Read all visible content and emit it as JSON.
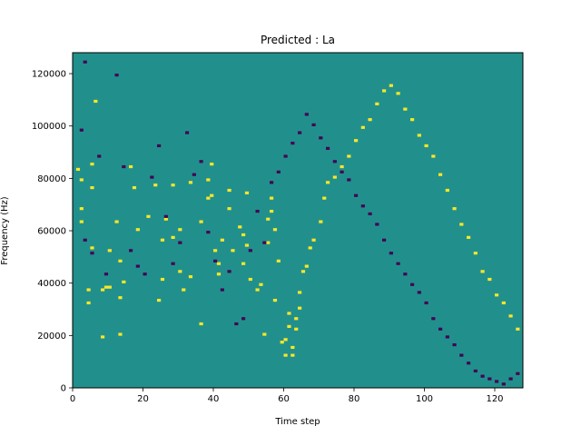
{
  "chart_data": {
    "type": "heatmap",
    "title": "Predicted : La",
    "xlabel": "Time step",
    "ylabel": "Frequency (Hz)",
    "xlim": [
      0,
      128
    ],
    "ylim": [
      0,
      128000
    ],
    "x_ticks": [
      0,
      20,
      40,
      60,
      80,
      100,
      120
    ],
    "y_ticks": [
      0,
      20000,
      40000,
      60000,
      80000,
      100000,
      120000
    ],
    "time_steps": 128,
    "freq_bins": 128,
    "bin_hz": 1000,
    "colors": {
      "background": "#21908d",
      "low": "#440154",
      "high": "#fde725"
    },
    "grid": false,
    "legend": "none",
    "cells": {
      "high": [
        [
          1,
          83
        ],
        [
          2,
          63
        ],
        [
          2,
          68
        ],
        [
          2,
          79
        ],
        [
          4,
          37
        ],
        [
          4,
          32
        ],
        [
          5,
          85
        ],
        [
          5,
          76
        ],
        [
          5,
          53
        ],
        [
          6,
          109
        ],
        [
          8,
          19
        ],
        [
          8,
          37
        ],
        [
          9,
          38
        ],
        [
          10,
          38
        ],
        [
          10,
          52
        ],
        [
          12,
          63
        ],
        [
          13,
          34
        ],
        [
          13,
          20
        ],
        [
          13,
          48
        ],
        [
          14,
          40
        ],
        [
          16,
          84
        ],
        [
          17,
          76
        ],
        [
          18,
          60
        ],
        [
          21,
          65
        ],
        [
          23,
          77
        ],
        [
          24,
          33
        ],
        [
          25,
          56
        ],
        [
          25,
          41
        ],
        [
          26,
          64
        ],
        [
          28,
          77
        ],
        [
          28,
          57
        ],
        [
          30,
          60
        ],
        [
          30,
          44
        ],
        [
          31,
          37
        ],
        [
          33,
          78
        ],
        [
          33,
          42
        ],
        [
          36,
          63
        ],
        [
          36,
          24
        ],
        [
          38,
          72
        ],
        [
          38,
          79
        ],
        [
          39,
          85
        ],
        [
          39,
          73
        ],
        [
          40,
          52
        ],
        [
          41,
          47
        ],
        [
          41,
          43
        ],
        [
          42,
          56
        ],
        [
          44,
          68
        ],
        [
          44,
          75
        ],
        [
          45,
          52
        ],
        [
          47,
          61
        ],
        [
          48,
          58
        ],
        [
          48,
          47
        ],
        [
          49,
          54
        ],
        [
          49,
          74
        ],
        [
          50,
          41
        ],
        [
          52,
          37
        ],
        [
          53,
          39
        ],
        [
          54,
          20
        ],
        [
          55,
          55
        ],
        [
          55,
          64
        ],
        [
          56,
          67
        ],
        [
          56,
          72
        ],
        [
          57,
          33
        ],
        [
          57,
          60
        ],
        [
          58,
          48
        ],
        [
          59,
          17
        ],
        [
          60,
          18
        ],
        [
          60,
          12
        ],
        [
          61,
          28
        ],
        [
          61,
          23
        ],
        [
          62,
          12
        ],
        [
          62,
          15
        ],
        [
          63,
          22
        ],
        [
          63,
          26
        ],
        [
          64,
          30
        ],
        [
          64,
          36
        ],
        [
          65,
          44
        ],
        [
          66,
          46
        ],
        [
          67,
          53
        ],
        [
          68,
          56
        ],
        [
          70,
          63
        ],
        [
          71,
          72
        ],
        [
          72,
          78
        ],
        [
          74,
          80
        ],
        [
          76,
          84
        ],
        [
          78,
          88
        ],
        [
          80,
          94
        ],
        [
          82,
          99
        ],
        [
          84,
          102
        ],
        [
          86,
          108
        ],
        [
          88,
          113
        ],
        [
          90,
          115
        ],
        [
          92,
          112
        ],
        [
          94,
          106
        ],
        [
          96,
          102
        ],
        [
          98,
          96
        ],
        [
          100,
          92
        ],
        [
          102,
          88
        ],
        [
          104,
          81
        ],
        [
          106,
          75
        ],
        [
          108,
          68
        ],
        [
          110,
          62
        ],
        [
          112,
          57
        ],
        [
          114,
          51
        ],
        [
          116,
          44
        ],
        [
          118,
          41
        ],
        [
          120,
          35
        ],
        [
          122,
          32
        ],
        [
          124,
          27
        ],
        [
          126,
          22
        ]
      ],
      "low": [
        [
          2,
          98
        ],
        [
          3,
          124
        ],
        [
          3,
          56
        ],
        [
          5,
          51
        ],
        [
          7,
          88
        ],
        [
          9,
          43
        ],
        [
          12,
          119
        ],
        [
          14,
          84
        ],
        [
          16,
          52
        ],
        [
          18,
          46
        ],
        [
          20,
          43
        ],
        [
          22,
          80
        ],
        [
          24,
          92
        ],
        [
          26,
          65
        ],
        [
          28,
          47
        ],
        [
          30,
          55
        ],
        [
          32,
          97
        ],
        [
          34,
          81
        ],
        [
          36,
          86
        ],
        [
          38,
          59
        ],
        [
          40,
          48
        ],
        [
          42,
          37
        ],
        [
          44,
          44
        ],
        [
          46,
          24
        ],
        [
          48,
          26
        ],
        [
          50,
          52
        ],
        [
          52,
          67
        ],
        [
          54,
          55
        ],
        [
          56,
          78
        ],
        [
          58,
          82
        ],
        [
          60,
          88
        ],
        [
          62,
          93
        ],
        [
          64,
          97
        ],
        [
          66,
          104
        ],
        [
          68,
          100
        ],
        [
          70,
          95
        ],
        [
          72,
          91
        ],
        [
          74,
          86
        ],
        [
          76,
          82
        ],
        [
          78,
          79
        ],
        [
          80,
          73
        ],
        [
          82,
          69
        ],
        [
          84,
          66
        ],
        [
          86,
          62
        ],
        [
          88,
          56
        ],
        [
          90,
          51
        ],
        [
          92,
          47
        ],
        [
          94,
          43
        ],
        [
          96,
          39
        ],
        [
          98,
          36
        ],
        [
          100,
          32
        ],
        [
          102,
          26
        ],
        [
          104,
          22
        ],
        [
          106,
          19
        ],
        [
          108,
          16
        ],
        [
          110,
          12
        ],
        [
          112,
          9
        ],
        [
          114,
          6
        ],
        [
          116,
          4
        ],
        [
          118,
          3
        ],
        [
          120,
          2
        ],
        [
          122,
          1
        ],
        [
          124,
          3
        ],
        [
          126,
          5
        ]
      ]
    }
  }
}
